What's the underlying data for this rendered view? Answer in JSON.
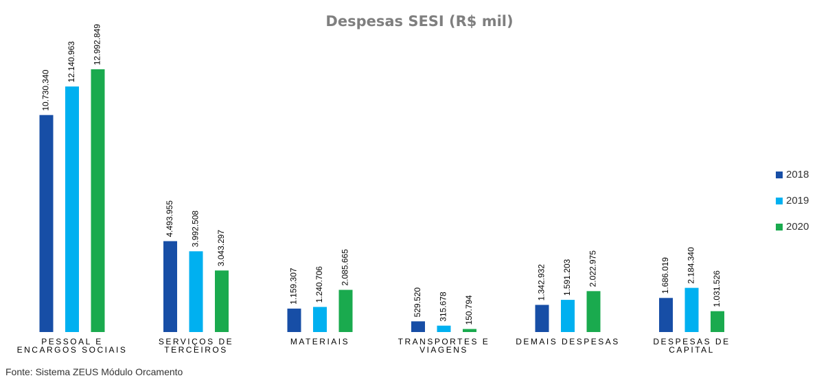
{
  "chart_data": {
    "type": "bar",
    "title": "Despesas SESI (R$ mil)",
    "source": "Fonte: Sistema ZEUS Módulo Orcamento",
    "categories": [
      "PESSOAL E\nENCARGOS SOCIAIS",
      "SERVIÇOS DE\nTERCEIROS",
      "MATERIAIS",
      "TRANSPORTES E\nVIAGENS",
      "DEMAIS DESPESAS",
      "DESPESAS DE\nCAPITAL"
    ],
    "series": [
      {
        "name": "2018",
        "color": "#174ea6",
        "values": [
          10730340,
          4493955,
          1159307,
          529520,
          1342932,
          1686019
        ],
        "value_labels": [
          "10.730.340",
          "4.493.955",
          "1.159.307",
          "529.520",
          "1.342.932",
          "1.686.019"
        ]
      },
      {
        "name": "2019",
        "color": "#00b0f0",
        "values": [
          12140963,
          3992508,
          1240706,
          315678,
          1591203,
          2184340
        ],
        "value_labels": [
          "12.140.963",
          "3.992.508",
          "1.240.706",
          "315.678",
          "1.591.203",
          "2.184.340"
        ]
      },
      {
        "name": "2020",
        "color": "#1aaa4e",
        "values": [
          12992849,
          3043297,
          2085665,
          150794,
          2022975,
          1031526
        ],
        "value_labels": [
          "12.992.849",
          "3.043.297",
          "2.085.665",
          "150.794",
          "2.022.975",
          "1.031.526"
        ]
      }
    ],
    "legend": "right"
  }
}
